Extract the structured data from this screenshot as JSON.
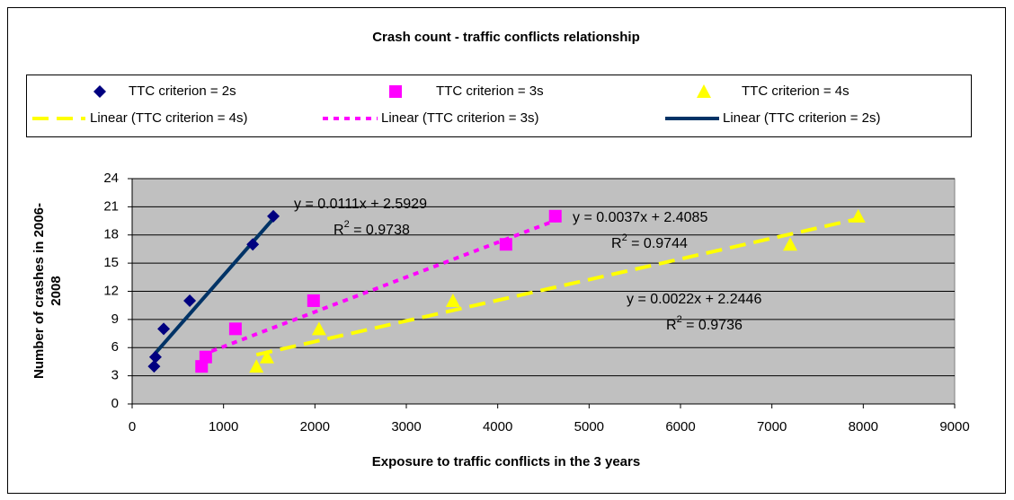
{
  "chart_data": {
    "type": "scatter",
    "title": "Crash count - traffic conflicts relationship",
    "xlabel": "Exposure to traffic conflicts in the 3 years",
    "ylabel_lines": [
      "Number of crashes in 2006-",
      "2008"
    ],
    "xlim": [
      0,
      9000
    ],
    "xticks": [
      0,
      1000,
      2000,
      3000,
      4000,
      5000,
      6000,
      7000,
      8000,
      9000
    ],
    "ylim": [
      0,
      24
    ],
    "yticks": [
      0,
      3,
      6,
      9,
      12,
      15,
      18,
      21,
      24
    ],
    "grid": true,
    "legend": "top",
    "series": [
      {
        "name": "TTC criterion = 2s",
        "color": "#000080",
        "marker": "diamond",
        "x": [
          240,
          255,
          345,
          630,
          1320,
          1545
        ],
        "values": [
          4,
          5,
          8,
          11,
          17,
          20
        ]
      },
      {
        "name": "TTC criterion = 3s",
        "color": "#ff00ff",
        "marker": "square",
        "x": [
          760,
          805,
          1130,
          1985,
          4090,
          4630
        ],
        "values": [
          4,
          5,
          8,
          11,
          17,
          20
        ]
      },
      {
        "name": "TTC criterion = 4s",
        "color": "#ffff00",
        "marker": "triangle",
        "x": [
          1360,
          1475,
          2045,
          3510,
          7200,
          7945
        ],
        "values": [
          4,
          5,
          8,
          11,
          17,
          20
        ]
      }
    ],
    "trendlines": [
      {
        "name": "Linear (TTC criterion = 4s)",
        "series": 2,
        "color": "#ffff00",
        "dash": "dashed",
        "slope": 0.0022,
        "intercept": 2.2446,
        "equation": "y = 0.0022x + 2.2446",
        "r2": {
          "base": "R",
          "sup": "2",
          "rest": " = 0.9736"
        }
      },
      {
        "name": "Linear (TTC criterion = 3s)",
        "series": 1,
        "color": "#ff00ff",
        "dash": "dotted",
        "slope": 0.0037,
        "intercept": 2.4085,
        "equation": "y = 0.0037x + 2.4085",
        "r2": {
          "base": "R",
          "sup": "2",
          "rest": " = 0.9744"
        }
      },
      {
        "name": "Linear (TTC criterion = 2s)",
        "series": 0,
        "color": "#003366",
        "dash": "solid",
        "slope": 0.0111,
        "intercept": 2.5929,
        "equation": "y = 0.0111x + 2.5929",
        "r2": {
          "base": "R",
          "sup": "2",
          "rest": " = 0.9738"
        }
      }
    ]
  }
}
